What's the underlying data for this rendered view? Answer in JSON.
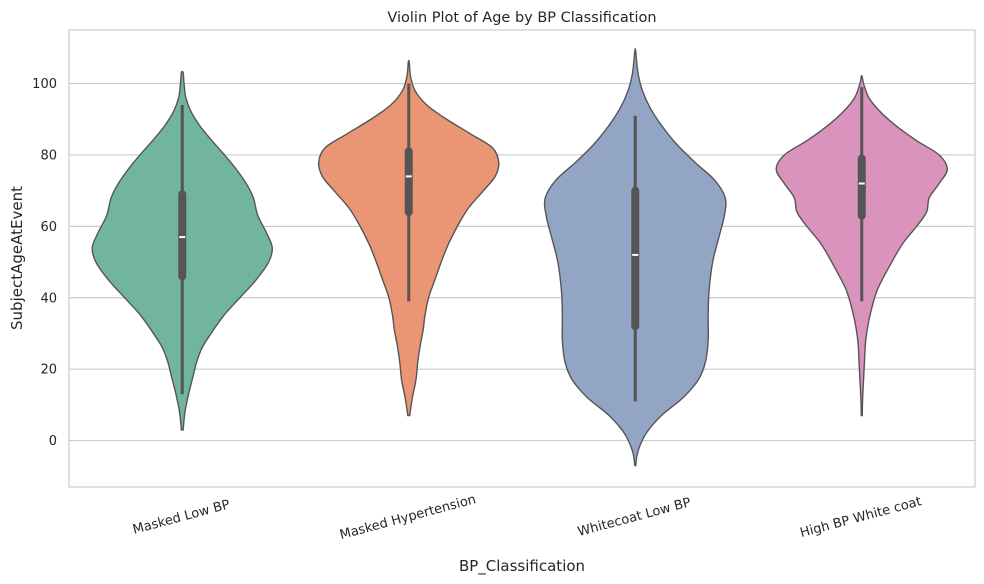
{
  "chart_data": {
    "type": "violin",
    "title": "Violin Plot of Age by BP Classification",
    "xlabel": "BP_Classification",
    "ylabel": "SubjectAgeAtEvent",
    "ylim": [
      -13,
      115
    ],
    "yticks": [
      0,
      20,
      40,
      60,
      80,
      100
    ],
    "grid": "horizontal",
    "categories": [
      "Masked Low BP",
      "Masked Hypertension",
      "Whitecoat Low BP",
      "High BP White coat"
    ],
    "colors": [
      "#72b59e",
      "#ea9573",
      "#93a5c5",
      "#d993bd"
    ],
    "series": [
      {
        "category": "Masked Low BP",
        "kde": [
          [
            3,
            0.01
          ],
          [
            8,
            0.03
          ],
          [
            13,
            0.07
          ],
          [
            18,
            0.12
          ],
          [
            22,
            0.16
          ],
          [
            26,
            0.22
          ],
          [
            30,
            0.32
          ],
          [
            35,
            0.46
          ],
          [
            40,
            0.64
          ],
          [
            45,
            0.82
          ],
          [
            50,
            0.96
          ],
          [
            54,
            1.0
          ],
          [
            58,
            0.94
          ],
          [
            63,
            0.84
          ],
          [
            68,
            0.79
          ],
          [
            72,
            0.71
          ],
          [
            76,
            0.6
          ],
          [
            80,
            0.47
          ],
          [
            84,
            0.33
          ],
          [
            88,
            0.2
          ],
          [
            92,
            0.1
          ],
          [
            96,
            0.04
          ],
          [
            100,
            0.02
          ],
          [
            103,
            0.01
          ]
        ],
        "min": 13,
        "q1": 46,
        "median": 57,
        "q3": 69,
        "max": 94
      },
      {
        "category": "Masked Hypertension",
        "kde": [
          [
            7,
            0.01
          ],
          [
            12,
            0.04
          ],
          [
            17,
            0.08
          ],
          [
            22,
            0.1
          ],
          [
            27,
            0.13
          ],
          [
            31,
            0.16
          ],
          [
            35,
            0.18
          ],
          [
            40,
            0.22
          ],
          [
            45,
            0.29
          ],
          [
            50,
            0.36
          ],
          [
            55,
            0.44
          ],
          [
            60,
            0.54
          ],
          [
            65,
            0.66
          ],
          [
            70,
            0.83
          ],
          [
            74,
            0.96
          ],
          [
            78,
            1.0
          ],
          [
            82,
            0.93
          ],
          [
            86,
            0.68
          ],
          [
            90,
            0.42
          ],
          [
            94,
            0.2
          ],
          [
            98,
            0.07
          ],
          [
            102,
            0.02
          ],
          [
            106,
            0.005
          ]
        ],
        "min": 39,
        "q1": 64,
        "median": 74,
        "q3": 81,
        "max": 100
      },
      {
        "category": "Whitecoat Low BP",
        "kde": [
          [
            -7,
            0.005
          ],
          [
            -3,
            0.03
          ],
          [
            2,
            0.12
          ],
          [
            7,
            0.29
          ],
          [
            12,
            0.53
          ],
          [
            17,
            0.7
          ],
          [
            22,
            0.78
          ],
          [
            28,
            0.81
          ],
          [
            35,
            0.81
          ],
          [
            42,
            0.82
          ],
          [
            50,
            0.86
          ],
          [
            57,
            0.93
          ],
          [
            63,
            0.99
          ],
          [
            68,
            1.0
          ],
          [
            73,
            0.88
          ],
          [
            78,
            0.66
          ],
          [
            83,
            0.46
          ],
          [
            88,
            0.3
          ],
          [
            93,
            0.17
          ],
          [
            98,
            0.08
          ],
          [
            103,
            0.03
          ],
          [
            109,
            0.005
          ]
        ],
        "min": 11,
        "q1": 32,
        "median": 52,
        "q3": 70,
        "max": 91
      },
      {
        "category": "High BP White coat",
        "kde": [
          [
            7,
            0.005
          ],
          [
            12,
            0.01
          ],
          [
            17,
            0.02
          ],
          [
            22,
            0.03
          ],
          [
            27,
            0.04
          ],
          [
            31,
            0.06
          ],
          [
            36,
            0.1
          ],
          [
            42,
            0.17
          ],
          [
            48,
            0.29
          ],
          [
            55,
            0.45
          ],
          [
            60,
            0.61
          ],
          [
            64,
            0.72
          ],
          [
            68,
            0.75
          ],
          [
            72,
            0.86
          ],
          [
            76,
            0.95
          ],
          [
            80,
            0.86
          ],
          [
            84,
            0.61
          ],
          [
            88,
            0.39
          ],
          [
            92,
            0.21
          ],
          [
            96,
            0.08
          ],
          [
            100,
            0.02
          ],
          [
            102,
            0.005
          ]
        ],
        "min": 39,
        "q1": 63,
        "median": 72,
        "q3": 79,
        "max": 99
      }
    ]
  }
}
